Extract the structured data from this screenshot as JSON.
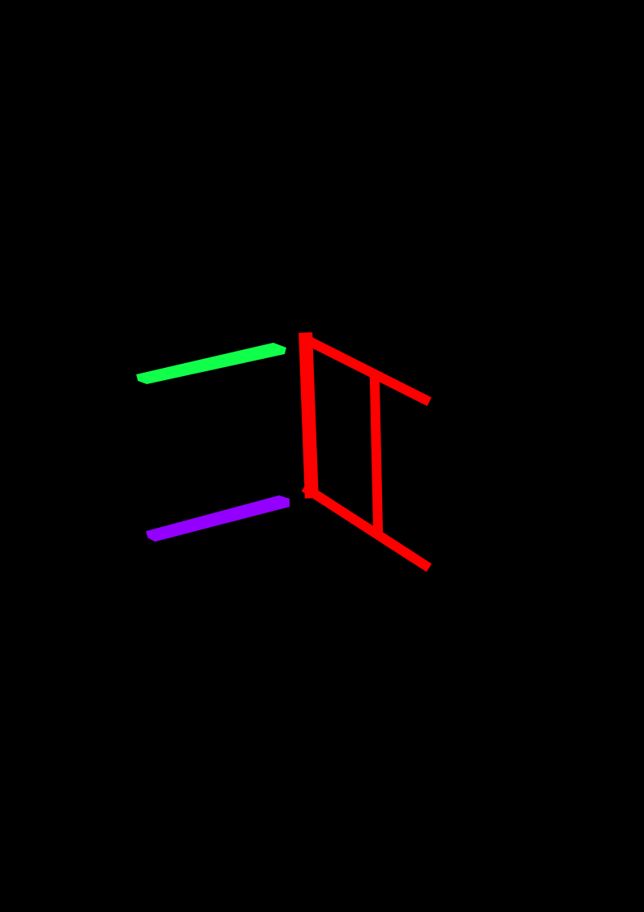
{
  "background_color": "#000000",
  "segments": [
    {
      "id": "green-bar",
      "color": "#10ff4a"
    },
    {
      "id": "purple-bar",
      "color": "#9300ff"
    },
    {
      "id": "red-frame",
      "color": "#ff0000"
    }
  ]
}
